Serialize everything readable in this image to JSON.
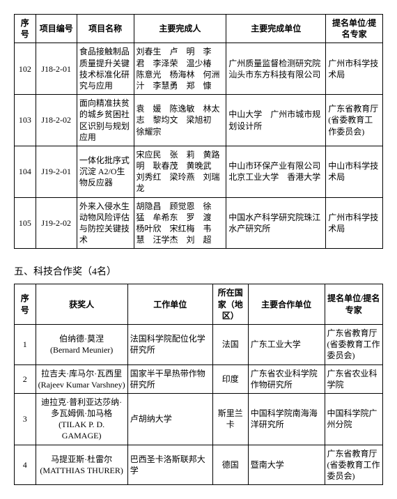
{
  "table1": {
    "headers": [
      "序号",
      "项目编号",
      "项目名称",
      "主要完成人",
      "主要完成单位",
      "提名单位/提名专家"
    ],
    "rows": [
      {
        "seq": "102",
        "code": "J18-2-01",
        "name": "食品接触制品质量提升关键技术标准化研究与应用",
        "people": "刘春生　卢　明　李　君　李泽荣　温少椿　陈意光　杨海林　何洲汁　李慧勇　郑　慷",
        "orgs": "广州质量监督检测研究院　汕头市东方科技有限公司",
        "nominator": "广州市科学技术局"
      },
      {
        "seq": "103",
        "code": "J18-2-02",
        "name": "面向精准扶贫的城乡贫困社区识别与规划应用",
        "people": "袁　媛　陈逸敏　林太志　黎均文　梁旭初　徐耀宗",
        "orgs": "中山大学　广州市城市规划设计所",
        "nominator": "广东省教育厅(省委教育工作委员会)"
      },
      {
        "seq": "104",
        "code": "J19-2-01",
        "name": "一体化批序式沉淀 A2/O生物反应器",
        "people": "宋应民　张　莉　黄路明　耿春茂　黄晚武　刘秀红　梁玲燕　刘瑞龙",
        "orgs": "中山市环保产业有限公司　北京工业大学　香港大学",
        "nominator": "中山市科学技术局"
      },
      {
        "seq": "105",
        "code": "J19-2-02",
        "name": "外来入侵水生动物风险评估与防控关键技术",
        "people": "胡隐昌　顾觉恩　徐　猛　牟希东　罗　渡　杨叶欣　宋红梅　韦　慧　汪学杰　刘　超",
        "orgs": "中国水产科学研究院珠江水产研究所",
        "nominator": "广州市科学技术局"
      }
    ]
  },
  "sectionTitle": "五、科技合作奖（4名）",
  "table2": {
    "headers": [
      "序号",
      "获奖人",
      "工作单位",
      "所在国家（地区）",
      "主要合作单位",
      "提名单位/提名专家"
    ],
    "rows": [
      {
        "seq": "1",
        "awardee": "伯纳德·莫涅\n(Bernard Meunier)",
        "work": "法国科学院配位化学研究所",
        "country": "法国",
        "partner": "广东工业大学",
        "nominator": "广东省教育厅(省委教育工作委员会)"
      },
      {
        "seq": "2",
        "awardee": "拉吉夫·库马尔·瓦西里\n(Rajeev Kumar Varshney)",
        "work": "国家半干旱热带作物研究所",
        "country": "印度",
        "partner": "广东省农业科学院作物研究所",
        "nominator": "广东省农业科学院"
      },
      {
        "seq": "3",
        "awardee": "迪拉克·普利亚达莎纳·多瓦姆佩·加马格\n(TILAK P. D. GAMAGE)",
        "work": "卢胡纳大学",
        "country": "斯里兰卡",
        "partner": "中国科学院南海海洋研究所",
        "nominator": "中国科学院广州分院"
      },
      {
        "seq": "4",
        "awardee": "马提亚斯·杜雷尔\n(MATTHIAS THURER)",
        "work": "巴西圣卡洛斯联邦大学",
        "country": "德国",
        "partner": "暨南大学",
        "nominator": "广东省教育厅(省委教育工作委员会)"
      }
    ]
  }
}
